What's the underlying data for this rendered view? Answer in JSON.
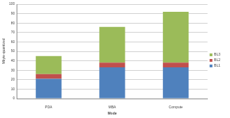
{
  "chart_data": {
    "type": "bar",
    "stacked": true,
    "x_label": "Mode",
    "y_label": "Mbyte-quantized",
    "categories": [
      "PDA",
      "MBA",
      "Compute"
    ],
    "series": [
      {
        "name": "BL1",
        "color": "#4f81bd",
        "values": [
          21,
          33,
          33
        ]
      },
      {
        "name": "BL2",
        "color": "#c0504d",
        "values": [
          5,
          5,
          5
        ]
      },
      {
        "name": "BL3",
        "color": "#9bbb59",
        "values": [
          19,
          38,
          54
        ]
      }
    ],
    "ylim": [
      0,
      100
    ],
    "yticks": [
      0,
      10,
      20,
      30,
      40,
      50,
      60,
      70,
      80,
      90,
      100
    ],
    "grid": true,
    "legend": "right"
  }
}
